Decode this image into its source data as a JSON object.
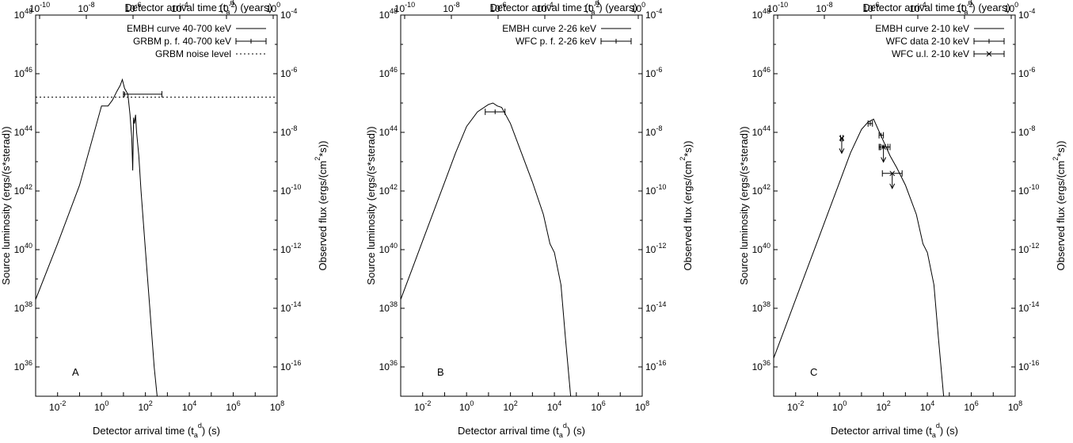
{
  "chart_data": [
    {
      "type": "line",
      "panel_label": "A",
      "xlabel_bottom": "Detector arrival time (t_a^d) (s)",
      "xlabel_top": "Detector arrival time (t_a^d) (years)",
      "ylabel_left": "Source luminosity (ergs/(s*sterad))",
      "ylabel_right": "Observed flux (ergs/(cm^2*s))",
      "xlim_log10": [
        -3,
        8
      ],
      "ylim_log10": [
        35,
        48
      ],
      "x_ticks": [
        "10^-2",
        "10^0",
        "10^2",
        "10^4",
        "10^6",
        "10^8"
      ],
      "x_top_ticks": [
        "10^-10",
        "10^-8",
        "10^-6",
        "10^-4",
        "10^-2",
        "10^0"
      ],
      "y_ticks": [
        "10^36",
        "10^38",
        "10^40",
        "10^42",
        "10^44",
        "10^46",
        "10^48"
      ],
      "y_right_ticks": [
        "10^-16",
        "10^-14",
        "10^-12",
        "10^-10",
        "10^-8",
        "10^-6",
        "10^-4"
      ],
      "legend_position": "top-right",
      "legend": [
        {
          "label": "EMBH curve 40-700 keV",
          "style": "solid"
        },
        {
          "label": "GRBM p. f. 40-700 keV",
          "style": "errorbar"
        },
        {
          "label": "GRBM noise level",
          "style": "dotted"
        }
      ],
      "series": [
        {
          "name": "EMBH curve 40-700 keV",
          "x_log10": [
            -3,
            -2,
            -1,
            0,
            0.3,
            0.5,
            0.7,
            0.85,
            0.95,
            1.05,
            1.2,
            1.3,
            1.38,
            1.42,
            1.46,
            1.5,
            1.55,
            1.6,
            1.7,
            1.8,
            2.0,
            2.2,
            2.4,
            2.6
          ],
          "y_log10": [
            38.3,
            40.2,
            42.2,
            44.9,
            44.9,
            45.1,
            45.4,
            45.6,
            45.8,
            45.5,
            45.3,
            44.6,
            43.8,
            42.7,
            44.5,
            44.3,
            44.6,
            44.0,
            43.2,
            42.0,
            40.0,
            38.0,
            36.0,
            34.5
          ]
        },
        {
          "name": "GRBM p. f. 40-700 keV",
          "points": [
            {
              "x_log10": 1.05,
              "y_log10": 45.3,
              "xerr_log10": [
                0.05,
                1.7
              ]
            }
          ]
        },
        {
          "name": "GRBM noise level",
          "y_log10": 45.2
        }
      ]
    },
    {
      "type": "line",
      "panel_label": "B",
      "xlabel_bottom": "Detector arrival time (t_a^d) (s)",
      "xlabel_top": "Detector arrival time (t_a^d) (years)",
      "ylabel_left": "Source luminosity (ergs/(s*sterad))",
      "ylabel_right": "Observed flux (ergs/(cm^2*s))",
      "xlim_log10": [
        -3,
        8
      ],
      "ylim_log10": [
        35,
        48
      ],
      "x_ticks": [
        "10^-2",
        "10^0",
        "10^2",
        "10^4",
        "10^6",
        "10^8"
      ],
      "x_top_ticks": [
        "10^-10",
        "10^-8",
        "10^-6",
        "10^-4",
        "10^-2",
        "10^0"
      ],
      "y_ticks": [
        "10^36",
        "10^38",
        "10^40",
        "10^42",
        "10^44",
        "10^46",
        "10^48"
      ],
      "y_right_ticks": [
        "10^-16",
        "10^-14",
        "10^-12",
        "10^-10",
        "10^-8",
        "10^-6",
        "10^-4"
      ],
      "legend_position": "top-right",
      "legend": [
        {
          "label": "EMBH curve 2-26 keV",
          "style": "solid"
        },
        {
          "label": "WFC p. f. 2-26 keV",
          "style": "errorbar"
        }
      ],
      "series": [
        {
          "name": "EMBH curve 2-26 keV",
          "x_log10": [
            -3,
            -2.5,
            -2,
            -1.5,
            -1,
            -0.5,
            0,
            0.5,
            1,
            1.2,
            1.4,
            1.6,
            2,
            2.5,
            3,
            3.5,
            3.8,
            4,
            4.3,
            4.5,
            4.8
          ],
          "y_log10": [
            38.3,
            39.3,
            40.3,
            41.3,
            42.3,
            43.3,
            44.2,
            44.7,
            44.95,
            45.0,
            44.9,
            44.85,
            44.3,
            43.3,
            42.3,
            41.2,
            40.2,
            39.9,
            38.8,
            37.0,
            34.5
          ]
        },
        {
          "name": "WFC p. f. 2-26 keV",
          "points": [
            {
              "x_log10": 1.3,
              "y_log10": 44.7,
              "xerr_log10": [
                0.45,
                0.45
              ]
            }
          ]
        }
      ]
    },
    {
      "type": "line",
      "panel_label": "C",
      "xlabel_bottom": "Detector arrival time (t_a^d) (s)",
      "xlabel_top": "Detector arrival time (t_a^d) (years)",
      "ylabel_left": "Source luminosity (ergs/(s*sterad))",
      "ylabel_right": "Observed flux (ergs/(cm^2*s))",
      "xlim_log10": [
        -3,
        8
      ],
      "ylim_log10": [
        35,
        48
      ],
      "x_ticks": [
        "10^-2",
        "10^0",
        "10^2",
        "10^4",
        "10^6",
        "10^8"
      ],
      "x_top_ticks": [
        "10^-10",
        "10^-8",
        "10^-6",
        "10^-4",
        "10^-2",
        "10^0"
      ],
      "y_ticks": [
        "10^36",
        "10^38",
        "10^40",
        "10^42",
        "10^44",
        "10^46",
        "10^48"
      ],
      "y_right_ticks": [
        "10^-16",
        "10^-14",
        "10^-12",
        "10^-10",
        "10^-8",
        "10^-6",
        "10^-4"
      ],
      "legend_position": "top-right",
      "legend": [
        {
          "label": "EMBH curve 2-10 keV",
          "style": "solid"
        },
        {
          "label": "WFC data 2-10 keV",
          "style": "errorbar"
        },
        {
          "label": "WFC u.l. 2-10 keV",
          "style": "errorbar-x"
        }
      ],
      "series": [
        {
          "name": "EMBH curve 2-10 keV",
          "x_log10": [
            -3,
            -2.5,
            -2,
            -1.5,
            -1,
            -0.5,
            0,
            0.5,
            1,
            1.3,
            1.55,
            1.7,
            2,
            2.3,
            2.6,
            3,
            3.5,
            3.8,
            4,
            4.3,
            4.5,
            4.8
          ],
          "y_log10": [
            36.3,
            37.3,
            38.3,
            39.3,
            40.3,
            41.3,
            42.3,
            43.3,
            44.1,
            44.35,
            44.45,
            44.2,
            43.7,
            43.2,
            42.8,
            42.2,
            41.2,
            40.2,
            39.9,
            38.8,
            37.0,
            34.5
          ]
        },
        {
          "name": "WFC data 2-10 keV",
          "points": [
            {
              "x_log10": 1.4,
              "y_log10": 44.3,
              "xerr_log10": [
                0.1,
                0.1
              ]
            },
            {
              "x_log10": 1.9,
              "y_log10": 43.9,
              "xerr_log10": [
                0.1,
                0.1
              ]
            },
            {
              "x_log10": 2.0,
              "y_log10": 43.5,
              "xerr_log10": [
                0.2,
                0.3
              ]
            }
          ]
        },
        {
          "name": "WFC u.l. 2-10 keV",
          "points": [
            {
              "x_log10": 0.1,
              "y_log10": 43.8,
              "xerr_log10": [
                0.05,
                0.05
              ]
            },
            {
              "x_log10": 2.0,
              "y_log10": 43.5,
              "xerr_log10": [
                0.15,
                0.2
              ]
            },
            {
              "x_log10": 2.4,
              "y_log10": 42.6,
              "xerr_log10": [
                0.45,
                0.45
              ]
            }
          ]
        }
      ]
    }
  ]
}
